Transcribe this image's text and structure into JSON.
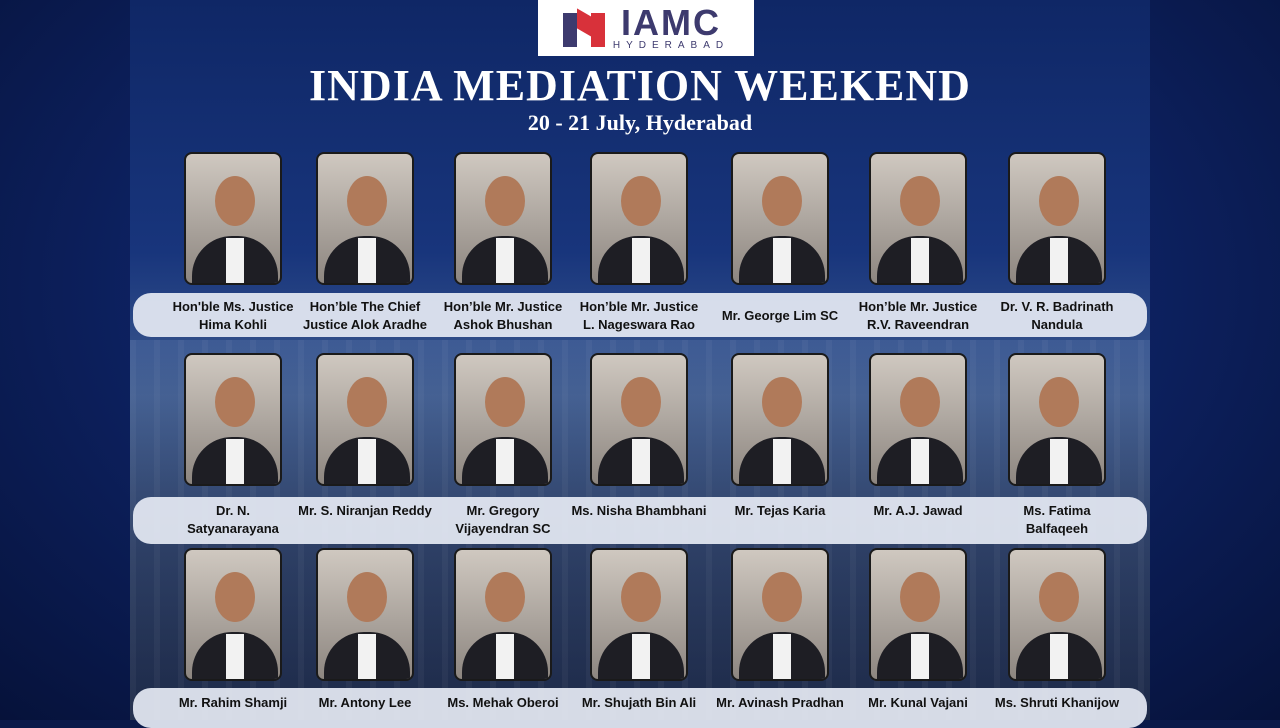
{
  "logo": {
    "brand": "IAMC",
    "city": "HYDERABAD",
    "colors": {
      "navy": "#3d3a6e",
      "red": "#d8313a"
    }
  },
  "title": "INDIA MEDIATION WEEKEND",
  "subtitle": "20 - 21 July, Hyderabad",
  "rows": [
    [
      {
        "l1": "Hon'ble Ms. Justice",
        "l2": "Hima Kohli"
      },
      {
        "l1": "Hon’ble The Chief",
        "l2": "Justice Alok Aradhe"
      },
      {
        "l1": "Hon’ble Mr. Justice",
        "l2": "Ashok Bhushan"
      },
      {
        "l1": "Hon’ble Mr. Justice",
        "l2": "L. Nageswara Rao"
      },
      {
        "l1": "Mr. George Lim  SC",
        "l2": ""
      },
      {
        "l1": "Hon’ble Mr. Justice",
        "l2": "R.V. Raveendran"
      },
      {
        "l1": "Dr. V. R. Badrinath",
        "l2": "Nandula"
      }
    ],
    [
      {
        "l1": "Dr. N.",
        "l2": "Satyanarayana"
      },
      {
        "l1": "Mr. S. Niranjan Reddy",
        "l2": ""
      },
      {
        "l1": "Mr. Gregory",
        "l2": "Vijayendran SC"
      },
      {
        "l1": "Ms. Nisha Bhambhani",
        "l2": ""
      },
      {
        "l1": "Mr. Tejas Karia",
        "l2": ""
      },
      {
        "l1": "Mr. A.J. Jawad",
        "l2": ""
      },
      {
        "l1": "Ms. Fatima",
        "l2": "Balfaqeeh"
      }
    ],
    [
      {
        "l1": "Mr. Rahim Shamji",
        "l2": ""
      },
      {
        "l1": "Mr. Antony Lee",
        "l2": ""
      },
      {
        "l1": "Ms. Mehak Oberoi",
        "l2": ""
      },
      {
        "l1": "Mr. Shujath Bin Ali",
        "l2": ""
      },
      {
        "l1": "Mr. Avinash Pradhan",
        "l2": ""
      },
      {
        "l1": "Mr. Kunal Vajani",
        "l2": ""
      },
      {
        "l1": "Ms. Shruti Khanijow",
        "l2": ""
      }
    ]
  ]
}
